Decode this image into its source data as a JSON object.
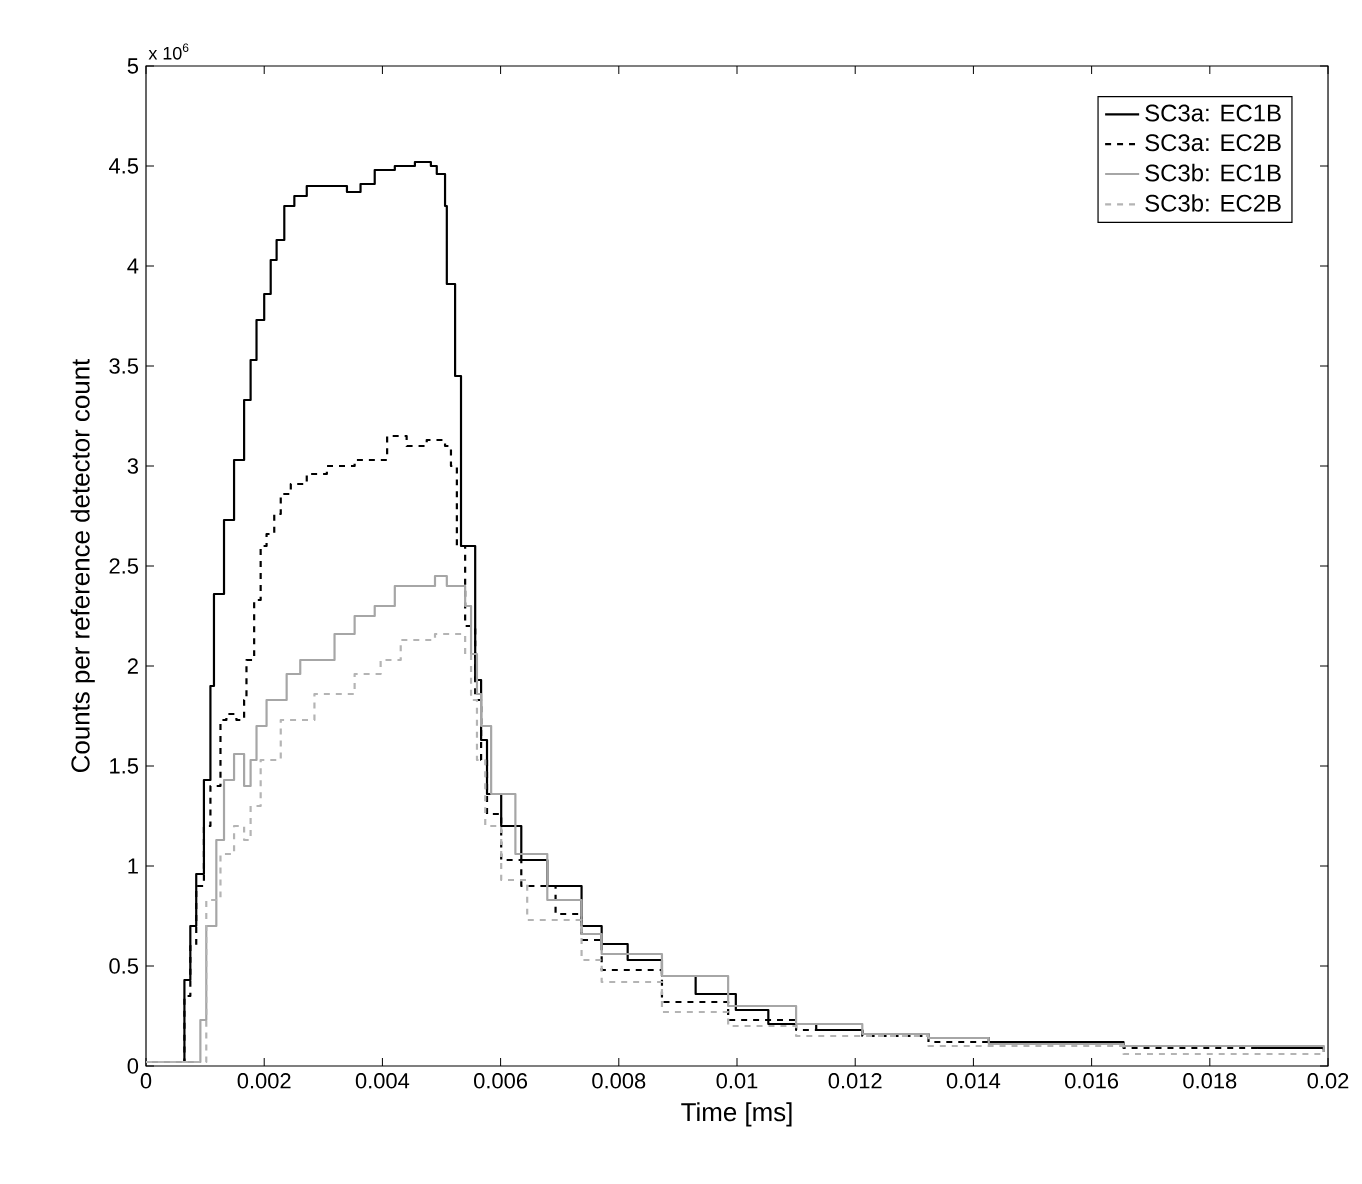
{
  "chart_data": {
    "type": "step",
    "xlabel": "Time [ms]",
    "ylabel": "Counts per reference detector count",
    "annotations": [
      "x 10$^{6}$"
    ],
    "xlim": [
      0,
      0.02
    ],
    "ylim": [
      0,
      5
    ],
    "xticks": [
      0,
      0.002,
      0.004,
      0.006,
      0.008,
      0.01,
      0.012,
      0.014,
      0.016,
      0.018,
      0.02
    ],
    "yticks": [
      0,
      0.5,
      1,
      1.5,
      2,
      2.5,
      3,
      3.5,
      4,
      4.5,
      5
    ],
    "legend": "top right",
    "grid": false,
    "series": [
      {
        "name": "SC3a: EC1B",
        "color": "#000000",
        "line_style": "solid",
        "x": [
          0,
          0.00058,
          0.00065,
          0.00075,
          0.00085,
          0.00098,
          0.00109,
          0.00115,
          0.00132,
          0.00149,
          0.00166,
          0.00177,
          0.00187,
          0.002,
          0.00211,
          0.00221,
          0.00234,
          0.00251,
          0.00272,
          0.00306,
          0.0034,
          0.00363,
          0.00387,
          0.00421,
          0.00455,
          0.00482,
          0.00492,
          0.00506,
          0.00509,
          0.00523,
          0.00533,
          0.00557,
          0.00567,
          0.00577,
          0.00601,
          0.00635,
          0.00679,
          0.00737,
          0.00771,
          0.00815,
          0.00873,
          0.0093,
          0.00998,
          0.01053,
          0.01134,
          0.01212,
          0.01324,
          0.01426,
          0.01654,
          0.01881,
          0.01993
        ],
        "values": [
          0.02,
          0.02,
          0.43,
          0.7,
          0.96,
          1.43,
          1.9,
          2.36,
          2.73,
          3.03,
          3.33,
          3.53,
          3.73,
          3.86,
          4.03,
          4.13,
          4.3,
          4.35,
          4.4,
          4.4,
          4.37,
          4.41,
          4.48,
          4.5,
          4.52,
          4.5,
          4.46,
          4.3,
          3.91,
          3.45,
          2.6,
          1.93,
          1.63,
          1.36,
          1.2,
          1.03,
          0.9,
          0.7,
          0.61,
          0.53,
          0.45,
          0.36,
          0.28,
          0.21,
          0.18,
          0.16,
          0.14,
          0.12,
          0.1,
          0.09,
          0.08
        ]
      },
      {
        "name": "SC3a: EC2B",
        "color": "#000000",
        "line_style": "dashed",
        "x": [
          0,
          0.00058,
          0.00065,
          0.00075,
          0.00085,
          0.00098,
          0.00109,
          0.00126,
          0.00136,
          0.00153,
          0.00166,
          0.0017,
          0.00183,
          0.00194,
          0.00204,
          0.00217,
          0.00228,
          0.00245,
          0.00272,
          0.00306,
          0.00353,
          0.00408,
          0.00441,
          0.00475,
          0.00506,
          0.00516,
          0.00526,
          0.0054,
          0.00557,
          0.00567,
          0.00577,
          0.00601,
          0.00635,
          0.00693,
          0.00737,
          0.00771,
          0.00873,
          0.00985,
          0.011,
          0.01212,
          0.01324,
          0.01654,
          0.01993
        ],
        "values": [
          0.02,
          0.02,
          0.35,
          0.6,
          0.9,
          1.2,
          1.4,
          1.73,
          1.76,
          1.73,
          1.83,
          2.03,
          2.33,
          2.6,
          2.66,
          2.76,
          2.86,
          2.91,
          2.96,
          3.0,
          3.03,
          3.15,
          3.1,
          3.13,
          3.1,
          3.0,
          2.6,
          2.2,
          1.83,
          1.53,
          1.26,
          1.03,
          0.9,
          0.76,
          0.63,
          0.48,
          0.32,
          0.23,
          0.18,
          0.15,
          0.12,
          0.09,
          0.07
        ]
      },
      {
        "name": "SC3b: EC1B",
        "color": "#a6a6a6",
        "line_style": "solid",
        "x": [
          0,
          0.00085,
          0.00092,
          0.00102,
          0.00119,
          0.00132,
          0.00149,
          0.00166,
          0.00177,
          0.00187,
          0.00204,
          0.00238,
          0.00261,
          0.00285,
          0.00319,
          0.00353,
          0.00387,
          0.00421,
          0.00455,
          0.00489,
          0.00509,
          0.0054,
          0.0055,
          0.0056,
          0.00567,
          0.00584,
          0.00625,
          0.00679,
          0.00737,
          0.00771,
          0.00873,
          0.00985,
          0.011,
          0.01212,
          0.01324,
          0.01426,
          0.01654,
          0.01993
        ],
        "values": [
          0.02,
          0.02,
          0.23,
          0.7,
          1.13,
          1.43,
          1.56,
          1.4,
          1.53,
          1.7,
          1.83,
          1.96,
          2.03,
          2.03,
          2.16,
          2.25,
          2.3,
          2.4,
          2.4,
          2.45,
          2.4,
          2.3,
          2.06,
          1.86,
          1.7,
          1.36,
          1.06,
          0.83,
          0.66,
          0.56,
          0.45,
          0.3,
          0.21,
          0.16,
          0.14,
          0.11,
          0.1,
          0.07
        ]
      },
      {
        "name": "SC3b: EC2B",
        "color": "#b4b4b4",
        "line_style": "dashed",
        "x": [
          0,
          0.00085,
          0.00102,
          0.00126,
          0.00149,
          0.00166,
          0.00177,
          0.00194,
          0.00228,
          0.00285,
          0.00353,
          0.00397,
          0.00431,
          0.00489,
          0.00523,
          0.0054,
          0.0055,
          0.0056,
          0.00574,
          0.00601,
          0.00645,
          0.00737,
          0.00771,
          0.00873,
          0.00985,
          0.011,
          0.01324,
          0.01654,
          0.01993
        ],
        "values": [
          0.02,
          0.02,
          0.83,
          1.06,
          1.2,
          1.13,
          1.3,
          1.53,
          1.73,
          1.86,
          1.96,
          2.03,
          2.13,
          2.16,
          2.16,
          2.06,
          1.83,
          1.53,
          1.2,
          0.93,
          0.73,
          0.53,
          0.42,
          0.27,
          0.2,
          0.15,
          0.1,
          0.06,
          0.05
        ]
      }
    ]
  }
}
